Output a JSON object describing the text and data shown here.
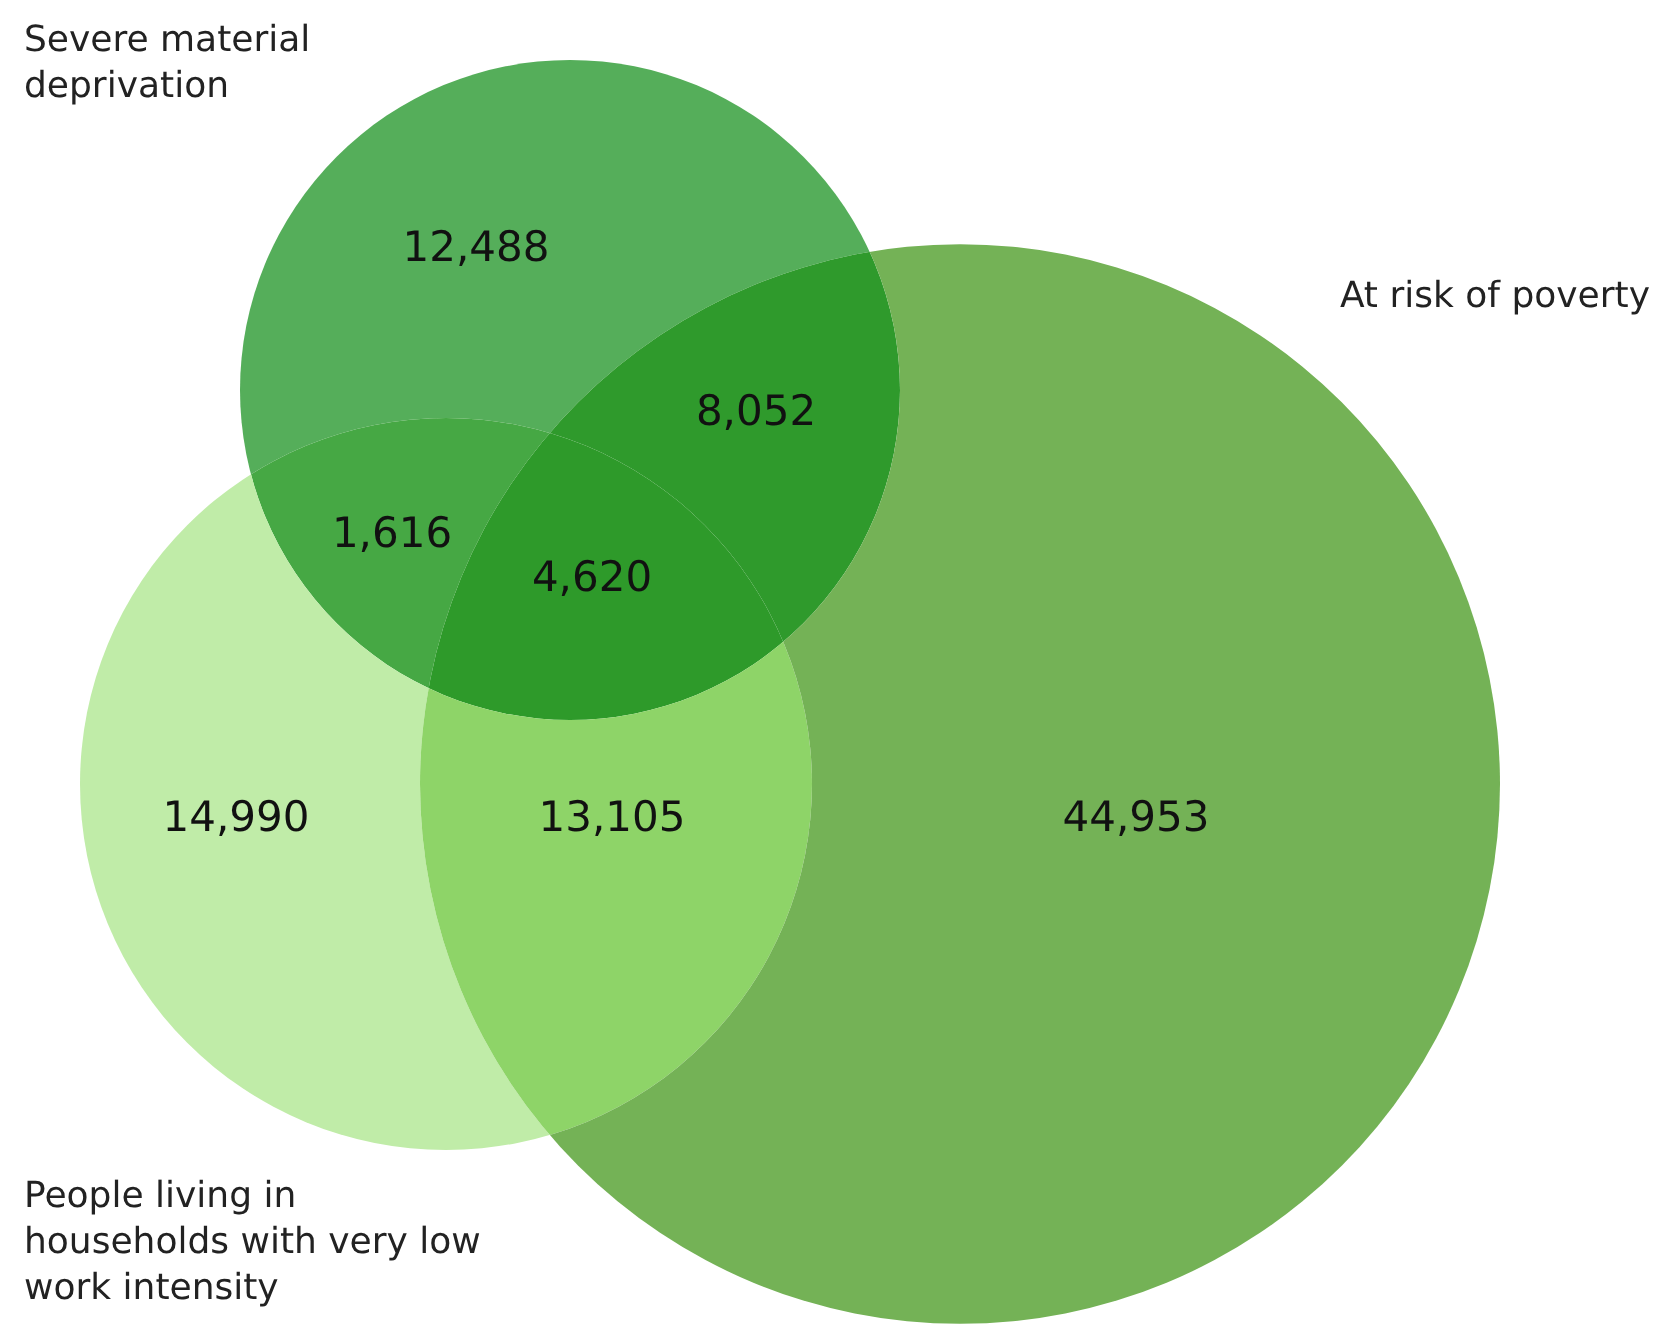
{
  "chart_data": {
    "type": "other",
    "annotations": [
      "Severe material deprivation",
      "At risk of poverty",
      "People living in households with very low work intensity"
    ],
    "categories": [
      null,
      null,
      null,
      null,
      null,
      null,
      null
    ],
    "values": [
      12488,
      8052,
      1616,
      4620,
      14990,
      13105,
      44953
    ],
    "value_labels": [
      "12,488",
      "8,052",
      "1,616",
      "4,620",
      "14,990",
      "13,105",
      "44,953"
    ],
    "colors": [
      "#55ae5a",
      "#2f9a2c",
      "#46a844",
      "#2e9a2a",
      "#c0eca8",
      "#8ed468",
      "#74b256"
    ]
  }
}
